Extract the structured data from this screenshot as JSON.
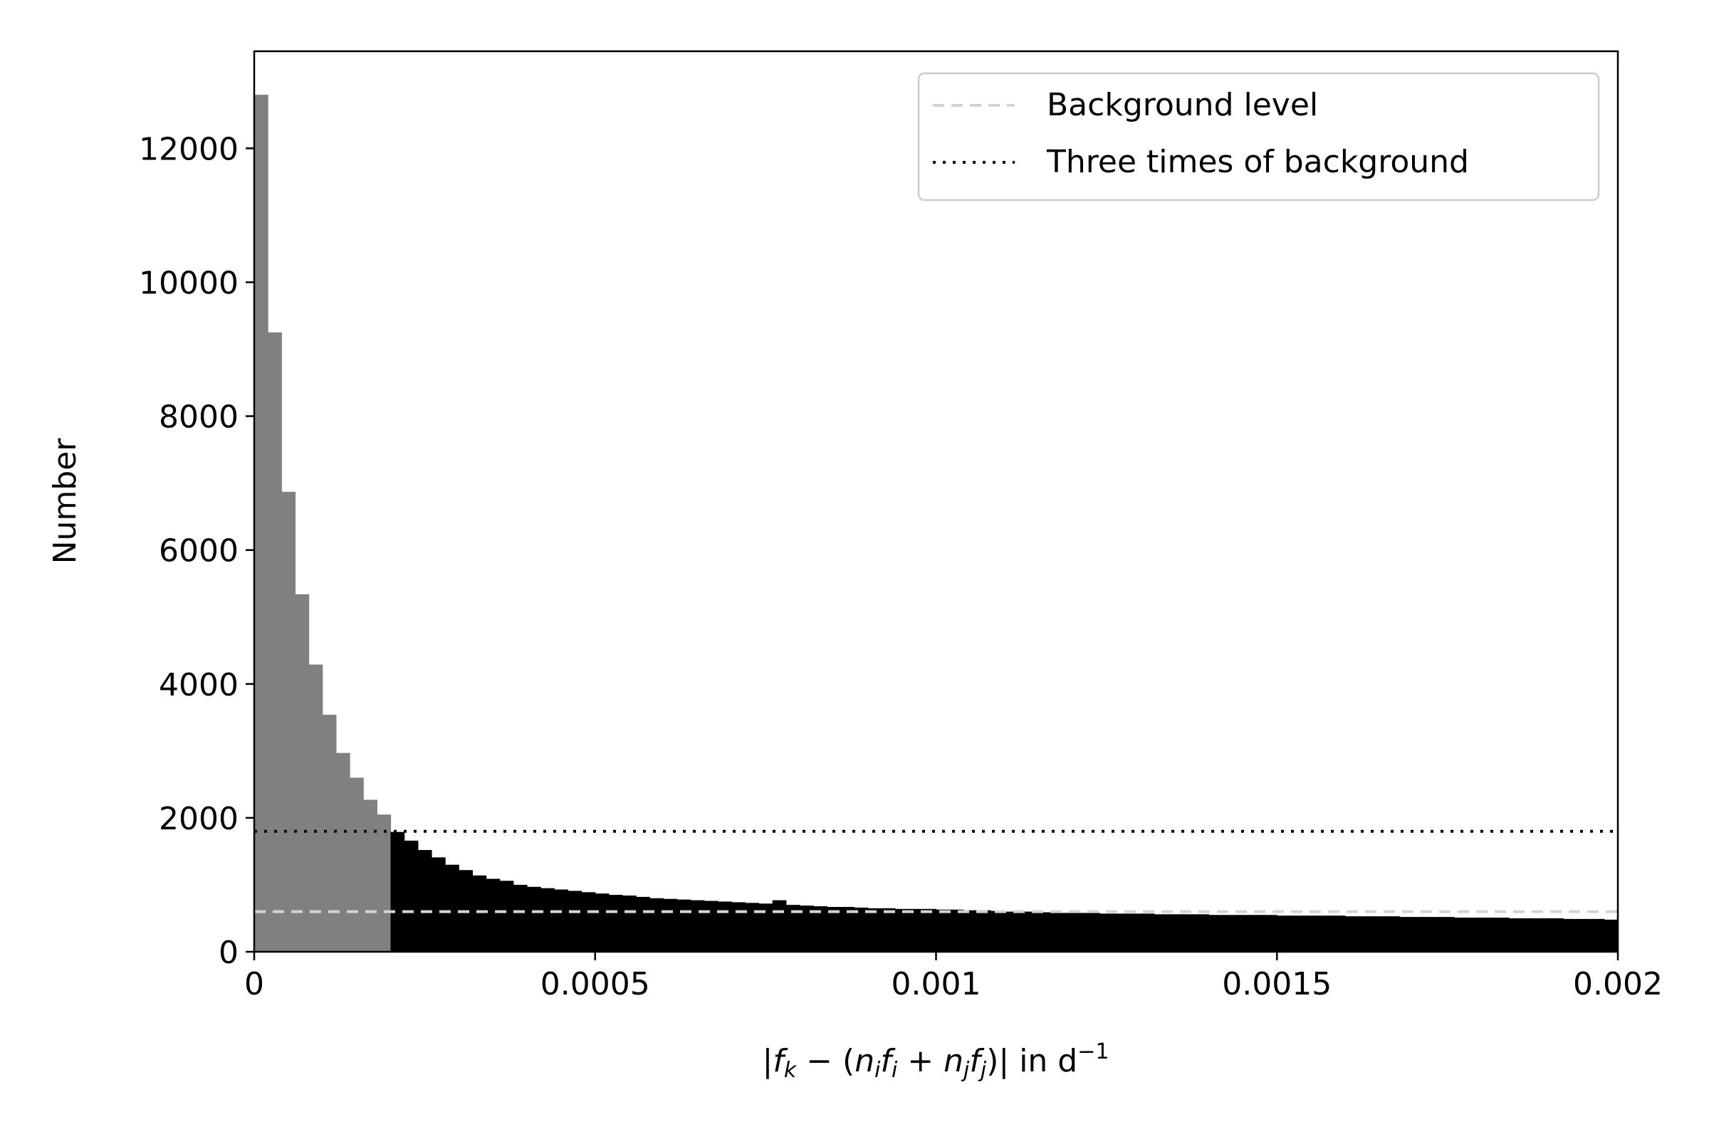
{
  "chart_data": {
    "type": "bar",
    "xlabel": "|f_k − (n_i f_i + n_j f_j)| in d^−1",
    "ylabel": "Number",
    "xlim": [
      0,
      0.002
    ],
    "ylim": [
      0,
      13450
    ],
    "x_ticks": [
      {
        "value": 0,
        "label": "0"
      },
      {
        "value": 0.0005,
        "label": "0.0005"
      },
      {
        "value": 0.001,
        "label": "0.001"
      },
      {
        "value": 0.0015,
        "label": "0.0015"
      },
      {
        "value": 0.002,
        "label": "0.002"
      }
    ],
    "y_ticks": [
      {
        "value": 0,
        "label": "0"
      },
      {
        "value": 2000,
        "label": "2000"
      },
      {
        "value": 4000,
        "label": "4000"
      },
      {
        "value": 6000,
        "label": "6000"
      },
      {
        "value": 8000,
        "label": "8000"
      },
      {
        "value": 10000,
        "label": "10000"
      },
      {
        "value": 12000,
        "label": "12000"
      }
    ],
    "bin_width": 2e-05,
    "bin_start": 0,
    "highlight_bins": 10,
    "values": [
      12800,
      9250,
      6870,
      5340,
      4290,
      3540,
      2970,
      2600,
      2270,
      2050,
      1790,
      1660,
      1520,
      1410,
      1300,
      1220,
      1140,
      1090,
      1060,
      1000,
      970,
      950,
      930,
      910,
      890,
      870,
      850,
      840,
      820,
      800,
      790,
      780,
      770,
      760,
      750,
      740,
      730,
      720,
      770,
      700,
      690,
      680,
      670,
      670,
      660,
      650,
      650,
      640,
      640,
      640,
      630,
      630,
      620,
      620,
      610,
      600,
      600,
      590,
      590,
      580,
      580,
      580,
      570,
      570,
      570,
      570,
      560,
      560,
      560,
      560,
      550,
      550,
      550,
      550,
      550,
      540,
      540,
      540,
      540,
      540,
      530,
      530,
      530,
      530,
      520,
      520,
      520,
      520,
      510,
      510,
      510,
      510,
      500,
      500,
      500,
      500,
      490,
      490,
      490,
      480
    ],
    "series": [
      {
        "name": "Background level",
        "value": 600,
        "style": "dashed",
        "color": "#d3d3d3"
      },
      {
        "name": "Three times of background",
        "value": 1800,
        "style": "dotted",
        "color": "#000000"
      }
    ],
    "colors": {
      "highlight": "#808080",
      "bars": "#000000"
    },
    "legend_position": "top-right",
    "grid": false
  }
}
